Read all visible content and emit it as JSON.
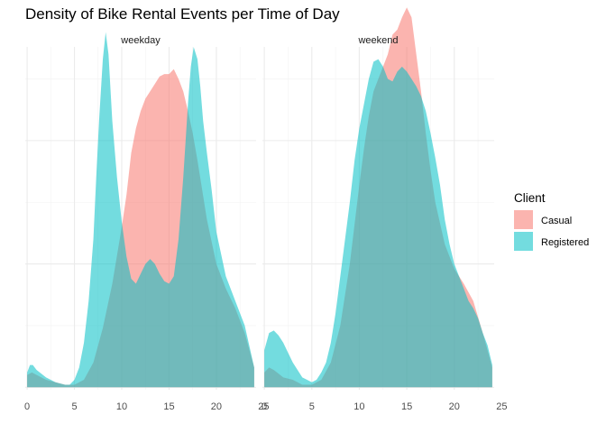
{
  "chart_data": {
    "type": "area",
    "title": "Density of Bike Rental Events per Time of Day",
    "xlabel": "",
    "ylabel": "",
    "xlim": [
      -0.2,
      24.2
    ],
    "ylim": [
      -0.001,
      0.138
    ],
    "x_ticks": [
      0,
      5,
      10,
      15,
      20,
      25
    ],
    "grid": true,
    "legend": {
      "title": "Client",
      "placement": "right",
      "entries": [
        "Casual",
        "Registered"
      ]
    },
    "series_colors": {
      "Casual": "#F8766D",
      "Registered": "#00BFC4"
    },
    "facets": [
      {
        "label": "weekday",
        "series": [
          {
            "name": "Casual",
            "x": [
              0,
              0.5,
              1,
              2,
              3,
              4,
              5,
              6,
              7,
              8,
              9,
              10,
              10.5,
              11,
              11.5,
              12,
              12.5,
              13,
              13.5,
              14,
              14.5,
              15,
              15.5,
              16,
              16.5,
              17,
              17.5,
              18,
              18.5,
              19,
              20,
              21,
              22,
              23,
              24
            ],
            "y": [
              0.005,
              0.006,
              0.005,
              0.003,
              0.002,
              0.001,
              0.001,
              0.003,
              0.01,
              0.024,
              0.042,
              0.065,
              0.078,
              0.095,
              0.105,
              0.112,
              0.117,
              0.12,
              0.123,
              0.126,
              0.127,
              0.127,
              0.129,
              0.125,
              0.12,
              0.112,
              0.103,
              0.092,
              0.08,
              0.068,
              0.05,
              0.04,
              0.032,
              0.022,
              0.008
            ]
          },
          {
            "name": "Registered",
            "x": [
              0,
              0.3,
              0.6,
              1,
              2,
              3,
              4,
              4.5,
              5,
              5.5,
              6,
              6.5,
              7,
              7.3,
              7.6,
              8,
              8.3,
              8.6,
              9,
              9.5,
              10,
              10.5,
              11,
              11.5,
              12,
              12.5,
              13,
              13.5,
              14,
              14.5,
              15,
              15.5,
              16,
              16.5,
              17,
              17.3,
              17.6,
              18,
              18.3,
              18.6,
              19,
              19.5,
              20,
              21,
              22,
              23,
              24
            ],
            "y": [
              0.006,
              0.009,
              0.009,
              0.007,
              0.004,
              0.002,
              0.001,
              0.001,
              0.003,
              0.008,
              0.018,
              0.035,
              0.06,
              0.085,
              0.108,
              0.133,
              0.144,
              0.135,
              0.108,
              0.085,
              0.067,
              0.053,
              0.044,
              0.042,
              0.046,
              0.05,
              0.052,
              0.05,
              0.046,
              0.043,
              0.042,
              0.045,
              0.06,
              0.085,
              0.115,
              0.13,
              0.138,
              0.133,
              0.122,
              0.108,
              0.095,
              0.08,
              0.063,
              0.045,
              0.035,
              0.025,
              0.008
            ]
          }
        ]
      },
      {
        "label": "weekend",
        "series": [
          {
            "name": "Casual",
            "x": [
              0,
              0.5,
              1,
              2,
              3,
              4,
              5,
              6,
              7,
              8,
              9,
              10,
              10.5,
              11,
              11.5,
              12,
              12.5,
              13,
              13.5,
              14,
              14.5,
              15,
              15.5,
              16,
              16.5,
              17,
              17.5,
              18,
              19,
              20,
              21,
              22,
              23,
              24
            ],
            "y": [
              0.006,
              0.008,
              0.007,
              0.004,
              0.003,
              0.001,
              0.001,
              0.003,
              0.01,
              0.025,
              0.05,
              0.082,
              0.097,
              0.11,
              0.12,
              0.125,
              0.13,
              0.135,
              0.143,
              0.145,
              0.15,
              0.154,
              0.15,
              0.135,
              0.12,
              0.103,
              0.088,
              0.075,
              0.058,
              0.048,
              0.042,
              0.035,
              0.022,
              0.008
            ]
          },
          {
            "name": "Registered",
            "x": [
              0,
              0.5,
              1,
              1.5,
              2,
              2.5,
              3,
              3.5,
              4,
              4.5,
              5,
              5.5,
              6,
              6.5,
              7,
              7.5,
              8,
              8.5,
              9,
              9.5,
              10,
              10.5,
              11,
              11.5,
              12,
              12.5,
              13,
              13.5,
              14,
              14.5,
              15,
              15.5,
              16,
              16.5,
              17,
              17.5,
              18,
              18.5,
              19,
              19.5,
              20,
              20.5,
              21,
              21.5,
              22,
              22.5,
              23,
              23.5,
              24
            ],
            "y": [
              0.015,
              0.022,
              0.023,
              0.021,
              0.018,
              0.014,
              0.01,
              0.007,
              0.004,
              0.003,
              0.002,
              0.003,
              0.006,
              0.01,
              0.018,
              0.03,
              0.045,
              0.06,
              0.075,
              0.092,
              0.105,
              0.115,
              0.125,
              0.132,
              0.133,
              0.13,
              0.125,
              0.124,
              0.128,
              0.13,
              0.128,
              0.125,
              0.122,
              0.118,
              0.112,
              0.103,
              0.093,
              0.082,
              0.068,
              0.058,
              0.05,
              0.045,
              0.04,
              0.035,
              0.032,
              0.028,
              0.022,
              0.017,
              0.009
            ]
          }
        ]
      }
    ]
  }
}
